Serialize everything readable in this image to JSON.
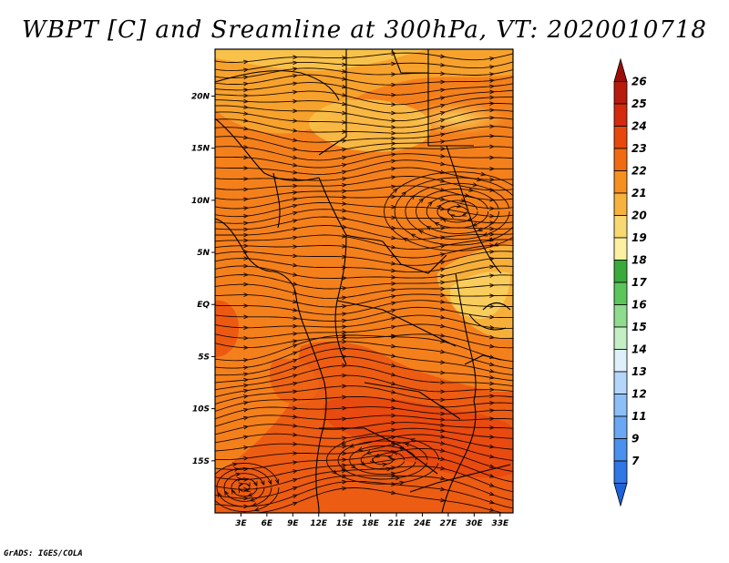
{
  "title": "WBPT [C] and Sreamline at 300hPa, VT: 2020010718",
  "credit": "GrADS: IGES/COLA",
  "map": {
    "lat_labels": [
      "20N",
      "15N",
      "10N",
      "5N",
      "EQ",
      "5S",
      "10S",
      "15S"
    ],
    "lat_values": [
      20,
      15,
      10,
      5,
      0,
      -5,
      -10,
      -15
    ],
    "lon_labels": [
      "3E",
      "6E",
      "9E",
      "12E",
      "15E",
      "18E",
      "21E",
      "24E",
      "27E",
      "30E",
      "33E"
    ],
    "lon_values": [
      3,
      6,
      9,
      12,
      15,
      18,
      21,
      24,
      27,
      30,
      33
    ],
    "lat_range": [
      -20,
      24.5
    ],
    "lon_range": [
      0,
      34.5
    ]
  },
  "colorbar": {
    "labels": [
      "7",
      "9",
      "11",
      "12",
      "13",
      "14",
      "15",
      "16",
      "17",
      "18",
      "19",
      "20",
      "21",
      "22",
      "23",
      "24",
      "25",
      "26"
    ],
    "colors": [
      "#1e64d8",
      "#2f78e6",
      "#4a90ee",
      "#6aa8f4",
      "#8cbef8",
      "#b4d6fa",
      "#dff0fb",
      "#c4eec4",
      "#8fdc8f",
      "#5cc65c",
      "#3aaa3a",
      "#fbf0a0",
      "#f8d870",
      "#f6b23c",
      "#f59020",
      "#f06a12",
      "#e8480e",
      "#d42a0e",
      "#b81a0c",
      "#9c0e0a"
    ]
  }
}
